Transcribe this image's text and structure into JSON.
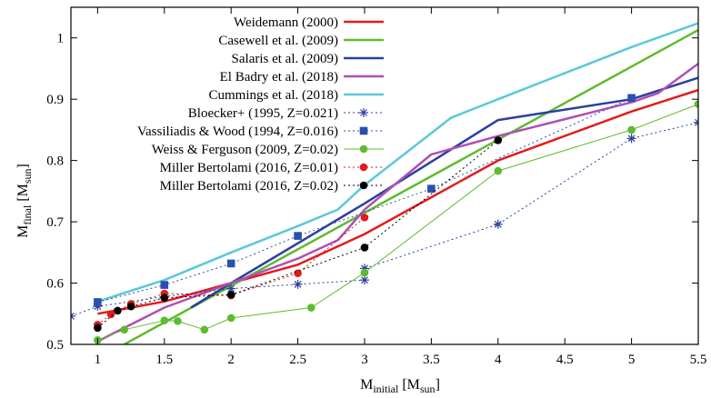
{
  "chart_data": {
    "type": "line",
    "title": "",
    "xlabel": "M_initial [M_sun]",
    "ylabel": "M_final [M_sun]",
    "xlabel_parts": {
      "main": "M",
      "sub": "initial",
      "unit": " [M",
      "unit_sub": "sun",
      "close": "]"
    },
    "ylabel_parts": {
      "main": "M",
      "sub": "final",
      "unit": " [M",
      "unit_sub": "sun",
      "close": "]"
    },
    "xlim": [
      0.8,
      5.5
    ],
    "ylim": [
      0.5,
      1.05
    ],
    "xticks": [
      1,
      1.5,
      2,
      2.5,
      3,
      3.5,
      4,
      4.5,
      5,
      5.5
    ],
    "xtick_labels": [
      "1",
      "1.5",
      "2",
      "2.5",
      "3",
      "3.5",
      "4",
      "4.5",
      "5",
      "5.5"
    ],
    "yticks": [
      0.5,
      0.6,
      0.7,
      0.8,
      0.9,
      1.0
    ],
    "ytick_labels": [
      "0.5",
      "0.6",
      "0.7",
      "0.8",
      "0.9",
      "1"
    ],
    "grid": false,
    "legend_position": "top-left",
    "series": [
      {
        "name": "Weidemann (2000)",
        "color": "#e41a1c",
        "style": "solid",
        "width": 2.5,
        "marker": "none",
        "x": [
          1.0,
          1.5,
          2.0,
          2.5,
          3.0,
          3.5,
          4.0,
          5.0,
          5.5
        ],
        "y": [
          0.55,
          0.57,
          0.6,
          0.63,
          0.68,
          0.74,
          0.8,
          0.88,
          0.915
        ]
      },
      {
        "name": "Casewell et al. (2009)",
        "color": "#5dbb2e",
        "style": "solid",
        "width": 2.5,
        "marker": "none",
        "x": [
          1.2,
          5.5
        ],
        "y": [
          0.5,
          1.013
        ]
      },
      {
        "name": "Salaris et al. (2009)",
        "color": "#2b3f9e",
        "style": "solid",
        "width": 2.5,
        "marker": "none",
        "x": [
          1.7,
          2.0,
          3.0,
          4.0,
          5.0,
          5.5
        ],
        "y": [
          0.56,
          0.6,
          0.73,
          0.866,
          0.9,
          0.935
        ]
      },
      {
        "name": "El Badry et al. (2018)",
        "color": "#b04fb5",
        "style": "solid",
        "width": 2.5,
        "marker": "none",
        "x": [
          1.0,
          1.5,
          2.0,
          2.5,
          2.8,
          3.0,
          3.5,
          4.0,
          5.0,
          5.2,
          5.5
        ],
        "y": [
          0.505,
          0.56,
          0.6,
          0.64,
          0.67,
          0.72,
          0.81,
          0.84,
          0.895,
          0.91,
          0.958
        ]
      },
      {
        "name": "Cummings et al. (2018)",
        "color": "#5bc8d8",
        "style": "solid",
        "width": 2.5,
        "marker": "none",
        "x": [
          1.0,
          1.5,
          2.0,
          2.5,
          2.8,
          3.0,
          3.65,
          4.0,
          5.0,
          5.5
        ],
        "y": [
          0.57,
          0.605,
          0.65,
          0.693,
          0.72,
          0.76,
          0.87,
          0.9,
          0.985,
          1.024
        ]
      },
      {
        "name": "Bloecker+ (1995, Z=0.021)",
        "color": "#2b3f9e",
        "style": "dotted",
        "width": 1,
        "marker": "asterisk",
        "x": [
          0.8,
          1.0,
          1.5,
          2.0,
          2.5,
          3.0,
          3.0,
          4.0,
          5.0,
          5.5
        ],
        "y": [
          0.546,
          0.562,
          0.578,
          0.591,
          0.598,
          0.605,
          0.624,
          0.696,
          0.836,
          0.862
        ]
      },
      {
        "name": "Vassiliadis & Wood (1994, Z=0.016)",
        "color": "#2b4fae",
        "style": "dotted",
        "width": 1,
        "marker": "square",
        "x": [
          1.0,
          1.5,
          2.0,
          2.5,
          3.5,
          5.0
        ],
        "y": [
          0.569,
          0.597,
          0.632,
          0.677,
          0.754,
          0.902
        ]
      },
      {
        "name": "Weiss & Ferguson (2009, Z=0.02)",
        "color": "#5dbb2e",
        "style": "solid",
        "width": 1,
        "marker": "circle",
        "x": [
          1.0,
          1.2,
          1.5,
          1.6,
          1.8,
          2.0,
          2.6,
          3.0,
          4.0,
          5.0,
          5.5
        ],
        "y": [
          0.507,
          0.524,
          0.539,
          0.538,
          0.524,
          0.543,
          0.56,
          0.617,
          0.783,
          0.85,
          0.892
        ]
      },
      {
        "name": "Miller Bertolami (2016, Z=0.01)",
        "color": "#e41a1c",
        "style": "dotted",
        "width": 1,
        "marker": "circle",
        "x": [
          1.0,
          1.1,
          1.25,
          1.5,
          2.0,
          2.5,
          3.0
        ],
        "y": [
          0.532,
          0.549,
          0.566,
          0.583,
          0.58,
          0.616,
          0.707
        ]
      },
      {
        "name": "Miller Bertolami (2016, Z=0.02)",
        "color": "#000000",
        "style": "dotted",
        "width": 1,
        "marker": "circle",
        "x": [
          1.0,
          1.15,
          1.25,
          1.5,
          2.0,
          3.0,
          4.0
        ],
        "y": [
          0.527,
          0.555,
          0.562,
          0.576,
          0.581,
          0.658,
          0.833
        ]
      }
    ]
  }
}
